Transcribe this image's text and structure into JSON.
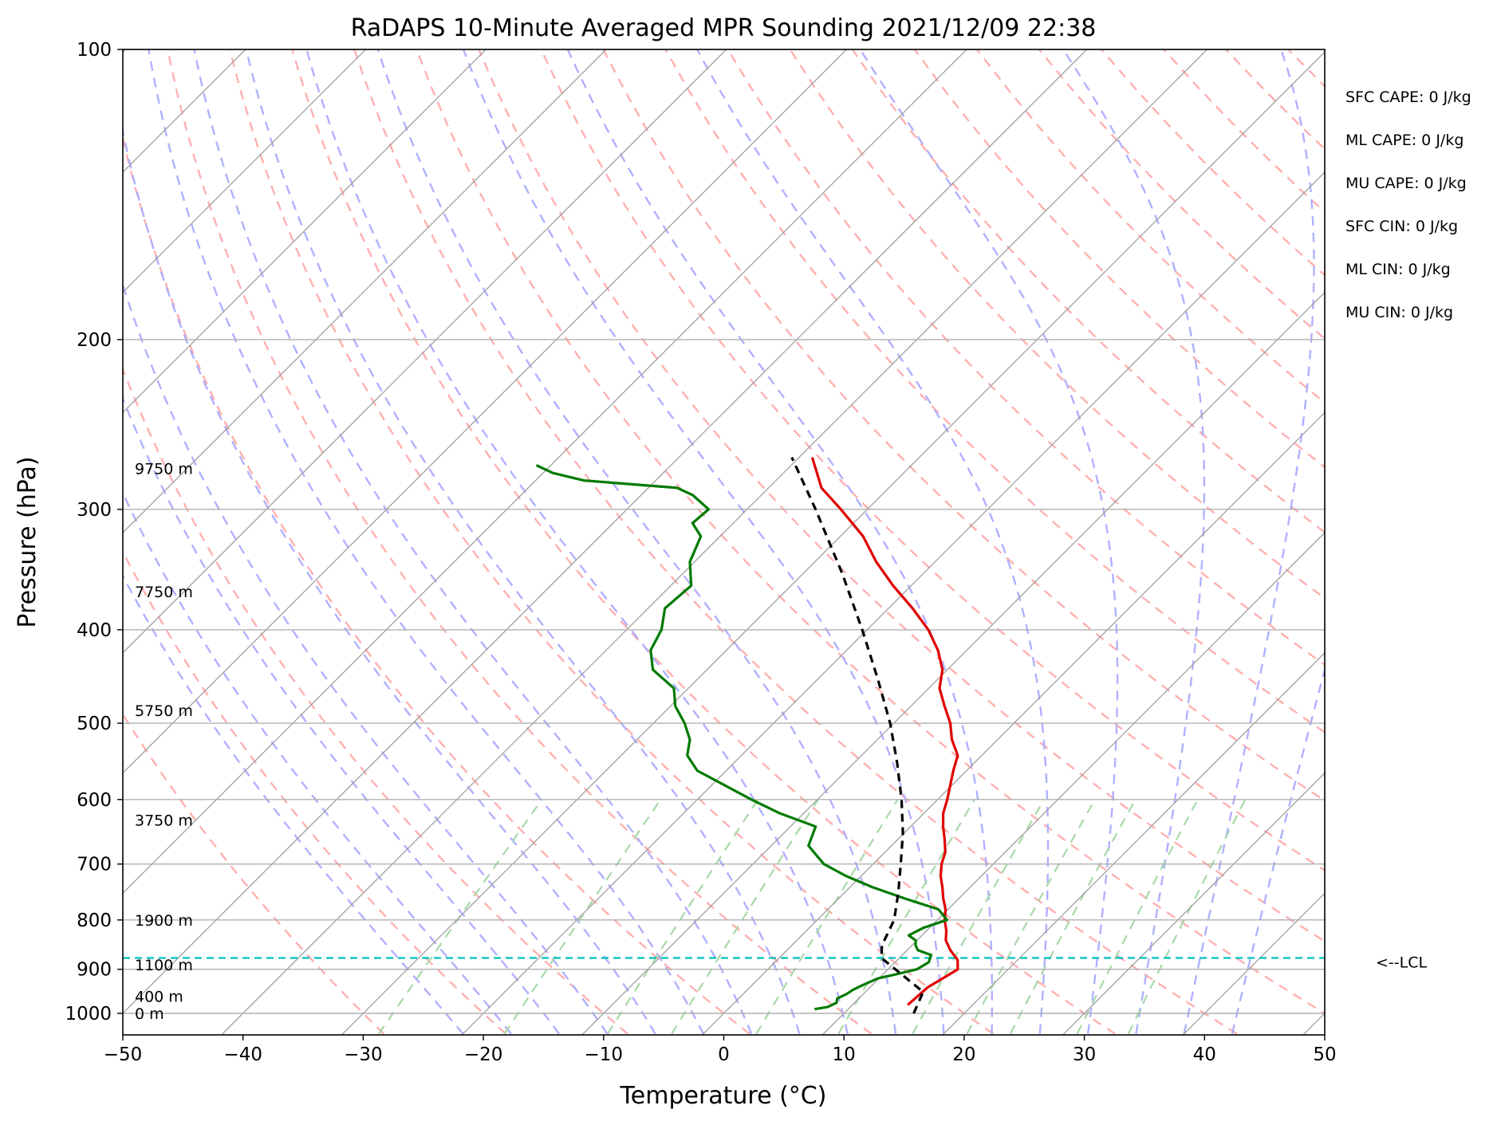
{
  "chart_data": {
    "type": "line",
    "subtype": "skew-t",
    "title": "RaDAPS 10-Minute Averaged MPR Sounding 2021/12/09 22:38",
    "xlabel": "Temperature (°C)",
    "ylabel": "Pressure (hPa)",
    "xlim": [
      -50,
      50
    ],
    "ylim": [
      1050,
      100
    ],
    "y_scale": "log",
    "x_ticks": [
      -50,
      -40,
      -30,
      -20,
      -10,
      0,
      10,
      20,
      30,
      40,
      50
    ],
    "x_tick_labels": [
      "−50",
      "−40",
      "−30",
      "−20",
      "−10",
      "0",
      "10",
      "20",
      "30",
      "40",
      "50"
    ],
    "y_ticks": [
      1000,
      900,
      800,
      700,
      600,
      500,
      400,
      300,
      200,
      100
    ],
    "y_tick_labels": [
      "1000",
      "900",
      "800",
      "700",
      "600",
      "500",
      "400",
      "300",
      "200",
      "100"
    ],
    "grid": true,
    "series": [
      {
        "role": "temperature",
        "color": "#e00000",
        "points": [
          [
            980,
            14.6
          ],
          [
            960,
            14.7
          ],
          [
            940,
            14.8
          ],
          [
            920,
            15.3
          ],
          [
            900,
            15.8
          ],
          [
            880,
            15.0
          ],
          [
            860,
            13.6
          ],
          [
            840,
            12.4
          ],
          [
            820,
            11.6
          ],
          [
            800,
            10.6
          ],
          [
            780,
            9.8
          ],
          [
            760,
            8.7
          ],
          [
            740,
            7.7
          ],
          [
            720,
            6.6
          ],
          [
            700,
            5.7
          ],
          [
            680,
            5.0
          ],
          [
            660,
            3.9
          ],
          [
            640,
            2.7
          ],
          [
            620,
            1.6
          ],
          [
            600,
            0.8
          ],
          [
            560,
            -1.1
          ],
          [
            540,
            -2.0
          ],
          [
            520,
            -3.8
          ],
          [
            500,
            -5.3
          ],
          [
            480,
            -7.2
          ],
          [
            460,
            -9.1
          ],
          [
            440,
            -10.4
          ],
          [
            420,
            -12.4
          ],
          [
            400,
            -14.9
          ],
          [
            380,
            -18.0
          ],
          [
            360,
            -21.5
          ],
          [
            340,
            -24.9
          ],
          [
            320,
            -28.1
          ],
          [
            300,
            -32.2
          ],
          [
            285,
            -35.6
          ],
          [
            265,
            -38.9
          ]
        ]
      },
      {
        "role": "dewpoint",
        "color": "#007a00",
        "points": [
          [
            990,
            7.2
          ],
          [
            985,
            8.1
          ],
          [
            975,
            8.5
          ],
          [
            965,
            8.2
          ],
          [
            955,
            8.6
          ],
          [
            945,
            8.8
          ],
          [
            935,
            9.2
          ],
          [
            920,
            9.9
          ],
          [
            910,
            11.2
          ],
          [
            900,
            12.4
          ],
          [
            885,
            12.8
          ],
          [
            870,
            12.4
          ],
          [
            860,
            10.9
          ],
          [
            850,
            10.3
          ],
          [
            840,
            9.9
          ],
          [
            830,
            8.9
          ],
          [
            815,
            9.5
          ],
          [
            800,
            10.8
          ],
          [
            780,
            9.2
          ],
          [
            760,
            5.5
          ],
          [
            740,
            1.9
          ],
          [
            720,
            -1.3
          ],
          [
            700,
            -4.1
          ],
          [
            670,
            -6.9
          ],
          [
            640,
            -7.9
          ],
          [
            620,
            -12.0
          ],
          [
            600,
            -15.5
          ],
          [
            560,
            -22.4
          ],
          [
            540,
            -24.5
          ],
          [
            520,
            -25.6
          ],
          [
            500,
            -27.4
          ],
          [
            480,
            -29.6
          ],
          [
            460,
            -31.2
          ],
          [
            440,
            -34.5
          ],
          [
            420,
            -36.3
          ],
          [
            400,
            -37.1
          ],
          [
            380,
            -38.6
          ],
          [
            360,
            -38.3
          ],
          [
            340,
            -40.4
          ],
          [
            320,
            -41.6
          ],
          [
            310,
            -43.4
          ],
          [
            300,
            -43.2
          ],
          [
            290,
            -45.7
          ],
          [
            285,
            -47.6
          ],
          [
            280,
            -56.0
          ],
          [
            275,
            -59.2
          ],
          [
            270,
            -61.2
          ]
        ]
      },
      {
        "role": "parcel-profile",
        "color": "#000000",
        "style": "dashed",
        "points": [
          [
            1000,
            15.8
          ],
          [
            950,
            14.8
          ],
          [
            900,
            10.6
          ],
          [
            876,
            8.5
          ],
          [
            850,
            7.5
          ],
          [
            800,
            6.4
          ],
          [
            750,
            4.5
          ],
          [
            700,
            2.3
          ],
          [
            650,
            -0.1
          ],
          [
            600,
            -3.0
          ],
          [
            550,
            -6.4
          ],
          [
            500,
            -10.3
          ],
          [
            450,
            -15.0
          ],
          [
            400,
            -20.4
          ],
          [
            350,
            -26.7
          ],
          [
            300,
            -34.3
          ],
          [
            265,
            -40.6
          ]
        ]
      }
    ],
    "lcl_pressure": 876,
    "lcl_label": "<--LCL",
    "height_labels": [
      {
        "pressure": 1000,
        "label": "0 m"
      },
      {
        "pressure": 960,
        "label": "400 m"
      },
      {
        "pressure": 890,
        "label": "1100 m"
      },
      {
        "pressure": 800,
        "label": "1900 m"
      },
      {
        "pressure": 630,
        "label": "3750 m"
      },
      {
        "pressure": 485,
        "label": "5750 m"
      },
      {
        "pressure": 365,
        "label": "7750 m"
      },
      {
        "pressure": 272,
        "label": "9750 m"
      }
    ],
    "indices": [
      {
        "label": "SFC CAPE: 0 J/kg"
      },
      {
        "label": "ML CAPE: 0 J/kg"
      },
      {
        "label": "MU CAPE: 0 J/kg"
      },
      {
        "label": "SFC CIN: 0 J/kg"
      },
      {
        "label": "ML CIN: 0 J/kg"
      },
      {
        "label": "MU CIN: 0 J/kg"
      }
    ],
    "reference_lines": {
      "isotherms": {
        "color": "#a0a0a0",
        "style": "solid"
      },
      "dry_adiabats": {
        "color": "#ffb0b0",
        "style": "dashed"
      },
      "moist_adiabats": {
        "color": "#b0b0ff",
        "style": "dashed"
      },
      "mixing_ratio": {
        "color": "#a8d8a8",
        "style": "dashed"
      },
      "lcl_line": {
        "color": "#00c0c0",
        "style": "dashed"
      }
    }
  }
}
